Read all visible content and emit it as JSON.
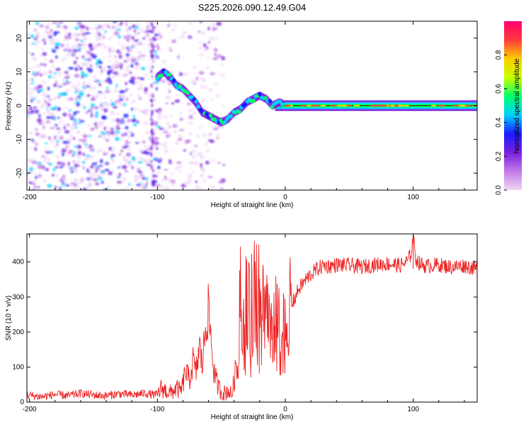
{
  "title": "S225.2026.090.12.49.G04",
  "chart_data": [
    {
      "type": "heatmap",
      "name": "spectrogram",
      "xlabel": "Height of straight line (km)",
      "ylabel": "Frequency (Hz)",
      "xlim": [
        -202,
        150
      ],
      "ylim": [
        -25,
        25
      ],
      "xticks": [
        -200,
        -100,
        0,
        100
      ],
      "xtick_labels": [
        "-200",
        "-100",
        "0",
        "100"
      ],
      "yticks": [
        -20,
        -10,
        0,
        10,
        20
      ],
      "ytick_labels": [
        "-20",
        "-10",
        "0",
        "10",
        "20"
      ],
      "colorbar": {
        "label": "Normalized spectral amplitude",
        "range": [
          0,
          1
        ],
        "ticks": [
          0.0,
          0.2,
          0.4,
          0.6,
          0.8
        ],
        "tick_labels": [
          "0.0",
          "0.2",
          "0.4",
          "0.6",
          "0.8"
        ],
        "colors": [
          "#f0d6f5",
          "#c27be8",
          "#7a1fe0",
          "#1a1aff",
          "#00d2ff",
          "#00ff6a",
          "#c8ff00",
          "#ffcc00",
          "#ff3b3b",
          "#ff0070"
        ]
      },
      "ridge": {
        "x": [
          -100,
          -95,
          -90,
          -85,
          -80,
          -75,
          -70,
          -65,
          -60,
          -55,
          -50,
          -45,
          -40,
          -35,
          -30,
          -25,
          -20,
          -15,
          -10,
          -5,
          0,
          5,
          10,
          20,
          40,
          60,
          80,
          100,
          120,
          150
        ],
        "y": [
          8.5,
          10,
          8.5,
          6,
          5,
          3,
          1,
          -2,
          -3,
          -4,
          -5,
          -4,
          -2,
          -1,
          1,
          2,
          3,
          2,
          0,
          1,
          0.5,
          0.2,
          0,
          0,
          0,
          0,
          0,
          0,
          0,
          0
        ]
      }
    },
    {
      "type": "line",
      "name": "snr",
      "xlabel": "Height of straight line (km)",
      "ylabel": "SNR (10 * v/v)",
      "xlim": [
        -202,
        150
      ],
      "ylim": [
        0,
        480
      ],
      "xticks": [
        -200,
        -100,
        0,
        100
      ],
      "xtick_labels": [
        "-200",
        "-100",
        "0",
        "100"
      ],
      "yticks": [
        0,
        100,
        200,
        300,
        400
      ],
      "ytick_labels": [
        "0",
        "100",
        "200",
        "300",
        "400"
      ],
      "series": [
        {
          "name": "SNR",
          "color": "#ee2222",
          "x": [
            -202,
            -190,
            -180,
            -170,
            -160,
            -150,
            -140,
            -130,
            -120,
            -110,
            -105,
            -100,
            -97,
            -95,
            -92,
            -90,
            -85,
            -82,
            -80,
            -78,
            -75,
            -72,
            -70,
            -67,
            -65,
            -62,
            -60,
            -58,
            -56,
            -54,
            -52,
            -50,
            -47,
            -45,
            -42,
            -40,
            -38,
            -35,
            -33,
            -30,
            -28,
            -25,
            -23,
            -20,
            -18,
            -15,
            -12,
            -10,
            -8,
            -5,
            -2,
            0,
            3,
            5,
            8,
            10,
            15,
            20,
            25,
            30,
            35,
            40,
            50,
            60,
            70,
            80,
            90,
            95,
            98,
            100,
            102,
            105,
            110,
            120,
            130,
            140,
            150
          ],
          "y": [
            20,
            15,
            22,
            18,
            25,
            20,
            18,
            24,
            20,
            25,
            22,
            20,
            40,
            35,
            30,
            25,
            40,
            30,
            50,
            90,
            60,
            120,
            80,
            160,
            100,
            230,
            260,
            180,
            90,
            60,
            40,
            30,
            25,
            35,
            20,
            60,
            120,
            350,
            180,
            320,
            240,
            300,
            330,
            360,
            280,
            290,
            240,
            250,
            230,
            210,
            190,
            220,
            250,
            280,
            300,
            320,
            345,
            365,
            380,
            390,
            388,
            392,
            390,
            386,
            392,
            395,
            390,
            400,
            420,
            470,
            410,
            395,
            388,
            392,
            385,
            390,
            380
          ]
        }
      ]
    }
  ]
}
